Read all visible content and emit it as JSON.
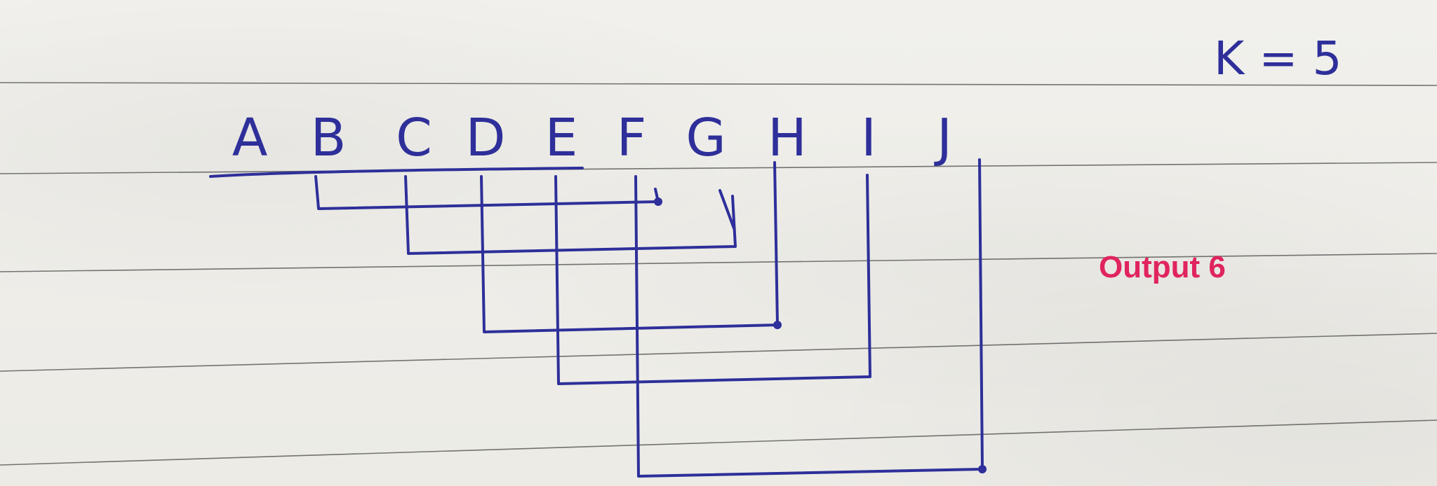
{
  "constraint": {
    "text": "K = 5"
  },
  "nodes": [
    "A",
    "B",
    "C",
    "D",
    "E",
    "F",
    "G",
    "H",
    "I",
    "J"
  ],
  "connections": [
    {
      "from": "B",
      "to": "F"
    },
    {
      "from": "C",
      "to": "G"
    },
    {
      "from": "D",
      "to": "H"
    },
    {
      "from": "E",
      "to": "I"
    },
    {
      "from": "F",
      "to": "J"
    }
  ],
  "annotation": {
    "text": "Output 6",
    "color": "#e0245e"
  },
  "colors": {
    "ink": "#2e2f9a",
    "paper": "#efeeea",
    "rule": "#4a4a4a"
  }
}
